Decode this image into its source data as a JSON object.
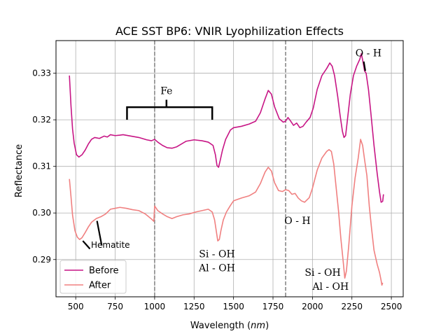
{
  "chart_data": {
    "type": "line",
    "title": "ACE SST BP6: VNIR Lyophilization Effects",
    "xlabel_main": "Wavelength (",
    "xlabel_unit": "nm",
    "xlabel_close": ")",
    "ylabel": "Reflectance",
    "xlim": [
      375,
      2575
    ],
    "ylim": [
      0.282,
      0.337
    ],
    "xticks": [
      500,
      750,
      1000,
      1250,
      1500,
      1750,
      2000,
      2250,
      2500
    ],
    "yticks": [
      0.29,
      0.3,
      0.31,
      0.32,
      0.33
    ],
    "ytick_labels": [
      "0.29",
      "0.30",
      "0.31",
      "0.32",
      "0.33"
    ],
    "grid": true,
    "legend_position": "lower left",
    "vlines": [
      1000,
      1830
    ],
    "series": [
      {
        "name": "Before",
        "color": "#c71585",
        "points": [
          [
            460,
            0.3295
          ],
          [
            470,
            0.323
          ],
          [
            480,
            0.318
          ],
          [
            490,
            0.315
          ],
          [
            505,
            0.3125
          ],
          [
            520,
            0.312
          ],
          [
            540,
            0.3125
          ],
          [
            560,
            0.3135
          ],
          [
            580,
            0.3148
          ],
          [
            600,
            0.3158
          ],
          [
            620,
            0.3162
          ],
          [
            650,
            0.316
          ],
          [
            680,
            0.3165
          ],
          [
            700,
            0.3163
          ],
          [
            720,
            0.3168
          ],
          [
            750,
            0.3166
          ],
          [
            780,
            0.3167
          ],
          [
            800,
            0.3168
          ],
          [
            850,
            0.3165
          ],
          [
            900,
            0.3162
          ],
          [
            950,
            0.3157
          ],
          [
            980,
            0.3155
          ],
          [
            1000,
            0.3158
          ],
          [
            1020,
            0.3152
          ],
          [
            1050,
            0.3145
          ],
          [
            1080,
            0.314
          ],
          [
            1110,
            0.3139
          ],
          [
            1140,
            0.3142
          ],
          [
            1170,
            0.3148
          ],
          [
            1200,
            0.3154
          ],
          [
            1250,
            0.3157
          ],
          [
            1300,
            0.3155
          ],
          [
            1340,
            0.3152
          ],
          [
            1370,
            0.3145
          ],
          [
            1385,
            0.3125
          ],
          [
            1395,
            0.3102
          ],
          [
            1405,
            0.3098
          ],
          [
            1415,
            0.3112
          ],
          [
            1430,
            0.3135
          ],
          [
            1450,
            0.3158
          ],
          [
            1480,
            0.3178
          ],
          [
            1500,
            0.3183
          ],
          [
            1550,
            0.3186
          ],
          [
            1600,
            0.3191
          ],
          [
            1640,
            0.3197
          ],
          [
            1670,
            0.3215
          ],
          [
            1700,
            0.3245
          ],
          [
            1720,
            0.3263
          ],
          [
            1740,
            0.3255
          ],
          [
            1760,
            0.3228
          ],
          [
            1790,
            0.3202
          ],
          [
            1815,
            0.3195
          ],
          [
            1830,
            0.3197
          ],
          [
            1845,
            0.3205
          ],
          [
            1860,
            0.3198
          ],
          [
            1880,
            0.3188
          ],
          [
            1900,
            0.3193
          ],
          [
            1920,
            0.3183
          ],
          [
            1940,
            0.3186
          ],
          [
            1960,
            0.3195
          ],
          [
            1985,
            0.3205
          ],
          [
            2005,
            0.3225
          ],
          [
            2030,
            0.3265
          ],
          [
            2060,
            0.3295
          ],
          [
            2090,
            0.331
          ],
          [
            2110,
            0.3322
          ],
          [
            2125,
            0.3315
          ],
          [
            2140,
            0.3295
          ],
          [
            2160,
            0.325
          ],
          [
            2175,
            0.321
          ],
          [
            2190,
            0.3175
          ],
          [
            2200,
            0.3162
          ],
          [
            2210,
            0.3166
          ],
          [
            2220,
            0.3195
          ],
          [
            2240,
            0.3255
          ],
          [
            2260,
            0.3295
          ],
          [
            2280,
            0.3315
          ],
          [
            2300,
            0.333
          ],
          [
            2310,
            0.3342
          ],
          [
            2320,
            0.3325
          ],
          [
            2330,
            0.3305
          ],
          [
            2340,
            0.33
          ],
          [
            2355,
            0.3265
          ],
          [
            2370,
            0.3215
          ],
          [
            2390,
            0.3145
          ],
          [
            2410,
            0.3085
          ],
          [
            2425,
            0.3045
          ],
          [
            2435,
            0.3023
          ],
          [
            2445,
            0.3025
          ],
          [
            2450,
            0.304
          ]
        ]
      },
      {
        "name": "After",
        "color": "#f08080",
        "points": [
          [
            460,
            0.3073
          ],
          [
            470,
            0.3035
          ],
          [
            480,
            0.2995
          ],
          [
            495,
            0.2962
          ],
          [
            510,
            0.2948
          ],
          [
            525,
            0.2943
          ],
          [
            540,
            0.2947
          ],
          [
            560,
            0.2958
          ],
          [
            580,
            0.297
          ],
          [
            600,
            0.298
          ],
          [
            630,
            0.2988
          ],
          [
            660,
            0.2992
          ],
          [
            690,
            0.2998
          ],
          [
            720,
            0.3008
          ],
          [
            750,
            0.301
          ],
          [
            780,
            0.3012
          ],
          [
            820,
            0.301
          ],
          [
            860,
            0.3007
          ],
          [
            900,
            0.3005
          ],
          [
            940,
            0.2998
          ],
          [
            980,
            0.2987
          ],
          [
            995,
            0.2982
          ],
          [
            1000,
            0.3015
          ],
          [
            1020,
            0.3005
          ],
          [
            1050,
            0.2998
          ],
          [
            1080,
            0.2992
          ],
          [
            1110,
            0.2988
          ],
          [
            1140,
            0.2992
          ],
          [
            1180,
            0.2996
          ],
          [
            1220,
            0.2998
          ],
          [
            1260,
            0.3002
          ],
          [
            1300,
            0.3005
          ],
          [
            1340,
            0.3008
          ],
          [
            1365,
            0.3002
          ],
          [
            1380,
            0.2985
          ],
          [
            1392,
            0.2958
          ],
          [
            1400,
            0.294
          ],
          [
            1410,
            0.2943
          ],
          [
            1420,
            0.2962
          ],
          [
            1435,
            0.2985
          ],
          [
            1455,
            0.3002
          ],
          [
            1480,
            0.3016
          ],
          [
            1500,
            0.3026
          ],
          [
            1550,
            0.3032
          ],
          [
            1600,
            0.3037
          ],
          [
            1640,
            0.3045
          ],
          [
            1670,
            0.3063
          ],
          [
            1700,
            0.3088
          ],
          [
            1720,
            0.3098
          ],
          [
            1740,
            0.309
          ],
          [
            1760,
            0.3065
          ],
          [
            1785,
            0.3048
          ],
          [
            1810,
            0.3046
          ],
          [
            1830,
            0.305
          ],
          [
            1850,
            0.3048
          ],
          [
            1870,
            0.304
          ],
          [
            1890,
            0.3042
          ],
          [
            1910,
            0.3032
          ],
          [
            1930,
            0.3026
          ],
          [
            1950,
            0.3023
          ],
          [
            1980,
            0.3033
          ],
          [
            2000,
            0.3053
          ],
          [
            2030,
            0.3092
          ],
          [
            2060,
            0.3118
          ],
          [
            2090,
            0.3132
          ],
          [
            2105,
            0.3136
          ],
          [
            2120,
            0.3132
          ],
          [
            2135,
            0.3105
          ],
          [
            2150,
            0.3055
          ],
          [
            2165,
            0.3005
          ],
          [
            2180,
            0.2945
          ],
          [
            2195,
            0.2895
          ],
          [
            2205,
            0.286
          ],
          [
            2215,
            0.2875
          ],
          [
            2230,
            0.293
          ],
          [
            2250,
            0.3015
          ],
          [
            2270,
            0.3075
          ],
          [
            2290,
            0.3118
          ],
          [
            2305,
            0.3158
          ],
          [
            2318,
            0.3145
          ],
          [
            2330,
            0.3115
          ],
          [
            2345,
            0.308
          ],
          [
            2360,
            0.3015
          ],
          [
            2375,
            0.2965
          ],
          [
            2390,
            0.292
          ],
          [
            2410,
            0.289
          ],
          [
            2425,
            0.2872
          ],
          [
            2435,
            0.2855
          ],
          [
            2440,
            0.2845
          ],
          [
            2445,
            0.285
          ]
        ]
      }
    ],
    "annotations": [
      {
        "text": "Fe",
        "x": 1075,
        "y": 0.3255,
        "family": "serif"
      },
      {
        "text": "O - H",
        "x": 2355,
        "y": 0.3336,
        "family": "serif"
      },
      {
        "text": "O - H",
        "x": 1905,
        "y": 0.2976,
        "family": "serif"
      },
      {
        "text": "Hematite",
        "x": 720,
        "y": 0.2925,
        "family": "sans"
      },
      {
        "text": "Si - OH",
        "x": 1395,
        "y": 0.2905,
        "family": "serif"
      },
      {
        "text": "Al - OH",
        "x": 1395,
        "y": 0.2875,
        "family": "serif"
      },
      {
        "text": "Si - OH",
        "x": 2065,
        "y": 0.2865,
        "family": "serif"
      },
      {
        "text": "Al - OH",
        "x": 2115,
        "y": 0.2835,
        "family": "serif"
      }
    ],
    "brackets": [
      {
        "x1": 825,
        "x2": 1365,
        "y_bar": 0.3227,
        "y_low": 0.32,
        "x_mid": 1075,
        "y_mid_top": 0.3243
      }
    ],
    "arrows": [
      {
        "x1": 2325,
        "y1": 0.3325,
        "x2": 2335,
        "y2": 0.3305
      },
      {
        "x1": 590,
        "y1": 0.2923,
        "x2": 545,
        "y2": 0.294
      },
      {
        "x1": 665,
        "y1": 0.293,
        "x2": 635,
        "y2": 0.2983
      }
    ]
  }
}
